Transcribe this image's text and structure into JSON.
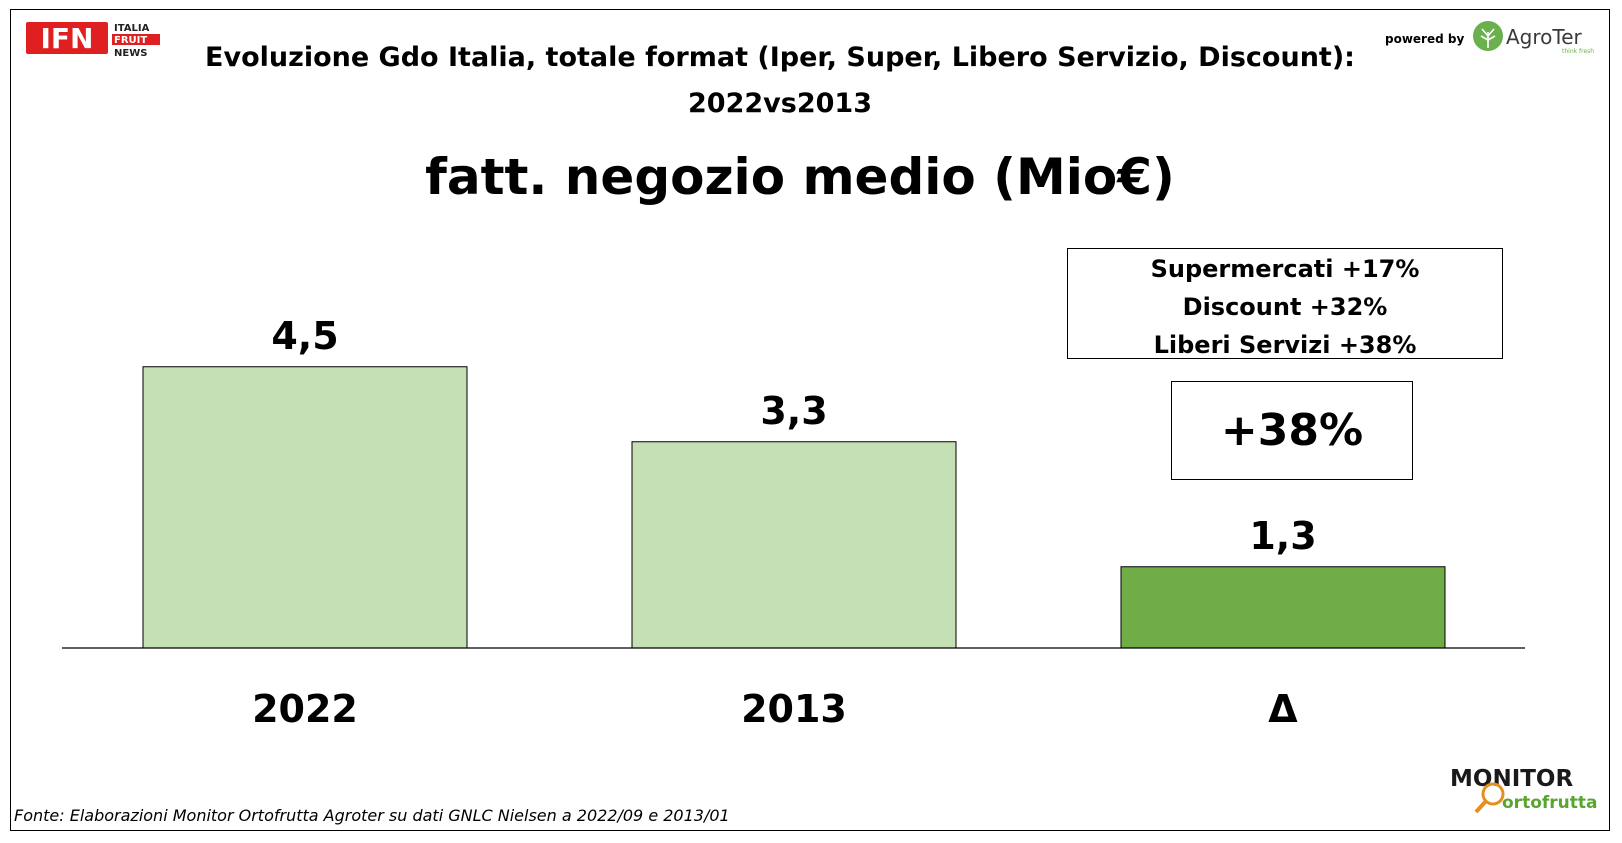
{
  "header": {
    "ifn_logo_text": "IFN",
    "ifn_logo_lines": [
      "ITALIA",
      "FRUIT",
      "NEWS"
    ],
    "powered_by": "powered by",
    "agroter_name": "AgroTer",
    "agroter_tagline": "think fresh"
  },
  "title_line1": "Evoluzione Gdo Italia, totale format (Iper, Super, Libero Servizio, Discount):",
  "title_line2": "2022vs2013",
  "subtitle": "fatt. negozio medio (Mio€)",
  "info_box": {
    "lines": [
      "Supermercati +17%",
      "Discount +32%",
      "Liberi Servizi +38%"
    ]
  },
  "highlight": "+38%",
  "chart_data": {
    "type": "bar",
    "categories": [
      "2022",
      "2013",
      "Δ"
    ],
    "values": [
      4.5,
      3.3,
      1.3
    ],
    "labels": [
      "4,5",
      "3,3",
      "1,3"
    ],
    "colors": [
      "#c5e0b4",
      "#c5e0b4",
      "#70ad47"
    ],
    "title": "fatt. negozio medio (Mio€)",
    "ylim": [
      0,
      5.5
    ],
    "grid": false
  },
  "source": "Fonte: Elaborazioni Monitor Ortofrutta Agroter su dati GNLC Nielsen a 2022/09 e 2013/01",
  "footer_logo": {
    "line1": "MONITOR",
    "line2": "ortofrutta"
  }
}
